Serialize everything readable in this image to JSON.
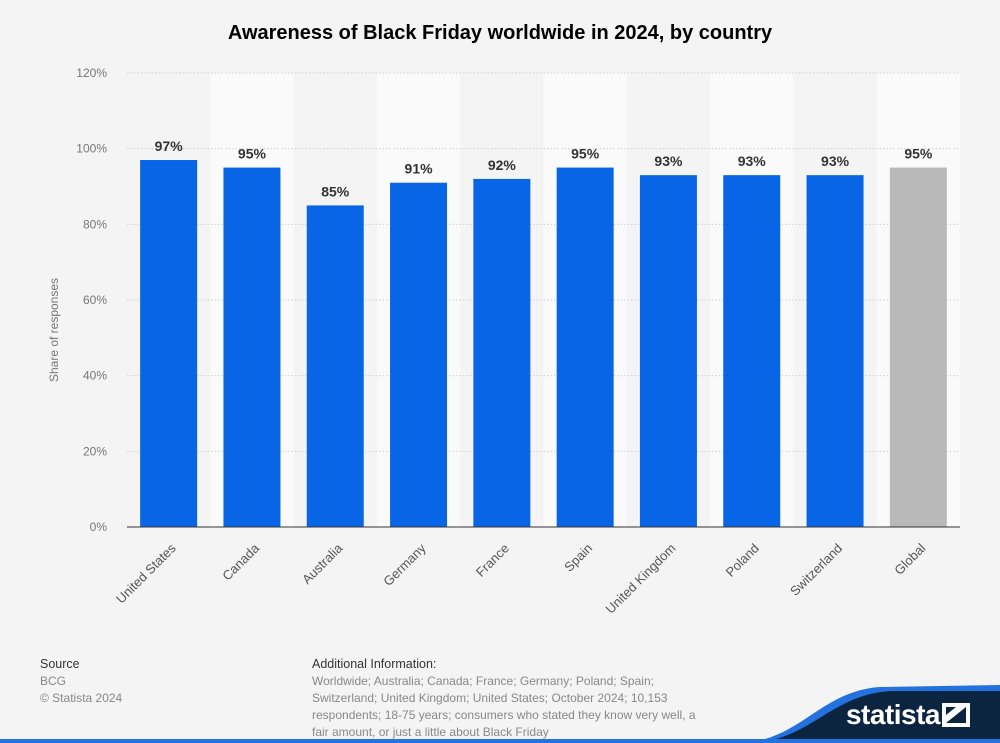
{
  "chart_data": {
    "type": "bar",
    "title": "Awareness of Black Friday worldwide in 2024, by country",
    "ylabel": "Share of responses",
    "xlabel": "",
    "ylim": [
      0,
      120
    ],
    "yticks": [
      "0%",
      "20%",
      "40%",
      "60%",
      "80%",
      "100%",
      "120%"
    ],
    "ytick_values": [
      0,
      20,
      40,
      60,
      80,
      100,
      120
    ],
    "grid": true,
    "categories": [
      "United States",
      "Canada",
      "Australia",
      "Germany",
      "France",
      "Spain",
      "United Kingdom",
      "Poland",
      "Switzerland",
      "Global"
    ],
    "values": [
      97,
      95,
      85,
      91,
      92,
      95,
      93,
      93,
      93,
      95
    ],
    "data_labels": [
      "97%",
      "95%",
      "85%",
      "91%",
      "92%",
      "95%",
      "93%",
      "93%",
      "93%",
      "95%"
    ],
    "colors": {
      "bar": "#0866e6",
      "highlight": "#b9b9b9"
    },
    "highlighted_category": "Global"
  },
  "footer": {
    "source_heading": "Source",
    "source": "BCG",
    "copyright": "© Statista 2024",
    "info_heading": "Additional Information:",
    "info_lines": [
      "Worldwide; Australia; Canada; France; Germany; Poland; Spain;",
      "Switzerland; United Kingdom; United States; October 2024; 10,153",
      "respondents; 18-75 years; consumers who stated they know very well, a",
      "fair amount, or just a little about Black Friday"
    ]
  },
  "brand": {
    "logo_text": "statista"
  }
}
